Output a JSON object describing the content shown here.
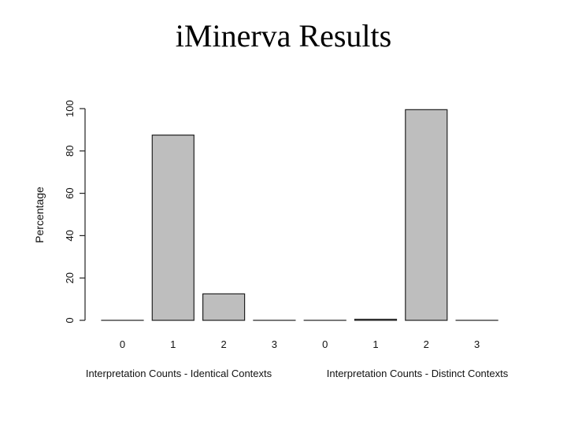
{
  "slide": {
    "title": "iMinerva Results"
  },
  "chart_data": {
    "type": "bar",
    "ylabel": "Percentage",
    "ylim": [
      0,
      100
    ],
    "yticks": [
      0,
      20,
      40,
      60,
      80,
      100
    ],
    "bar_color": "#bebebe",
    "grid": false,
    "groups": [
      {
        "xlabel": "Interpretation Counts - Identical Contexts",
        "categories": [
          "0",
          "1",
          "2",
          "3"
        ],
        "values": [
          0,
          87.5,
          12.5,
          0
        ]
      },
      {
        "xlabel": "Interpretation Counts - Distinct Contexts",
        "categories": [
          "0",
          "1",
          "2",
          "3"
        ],
        "values": [
          0,
          0.5,
          99.5,
          0
        ]
      }
    ]
  }
}
